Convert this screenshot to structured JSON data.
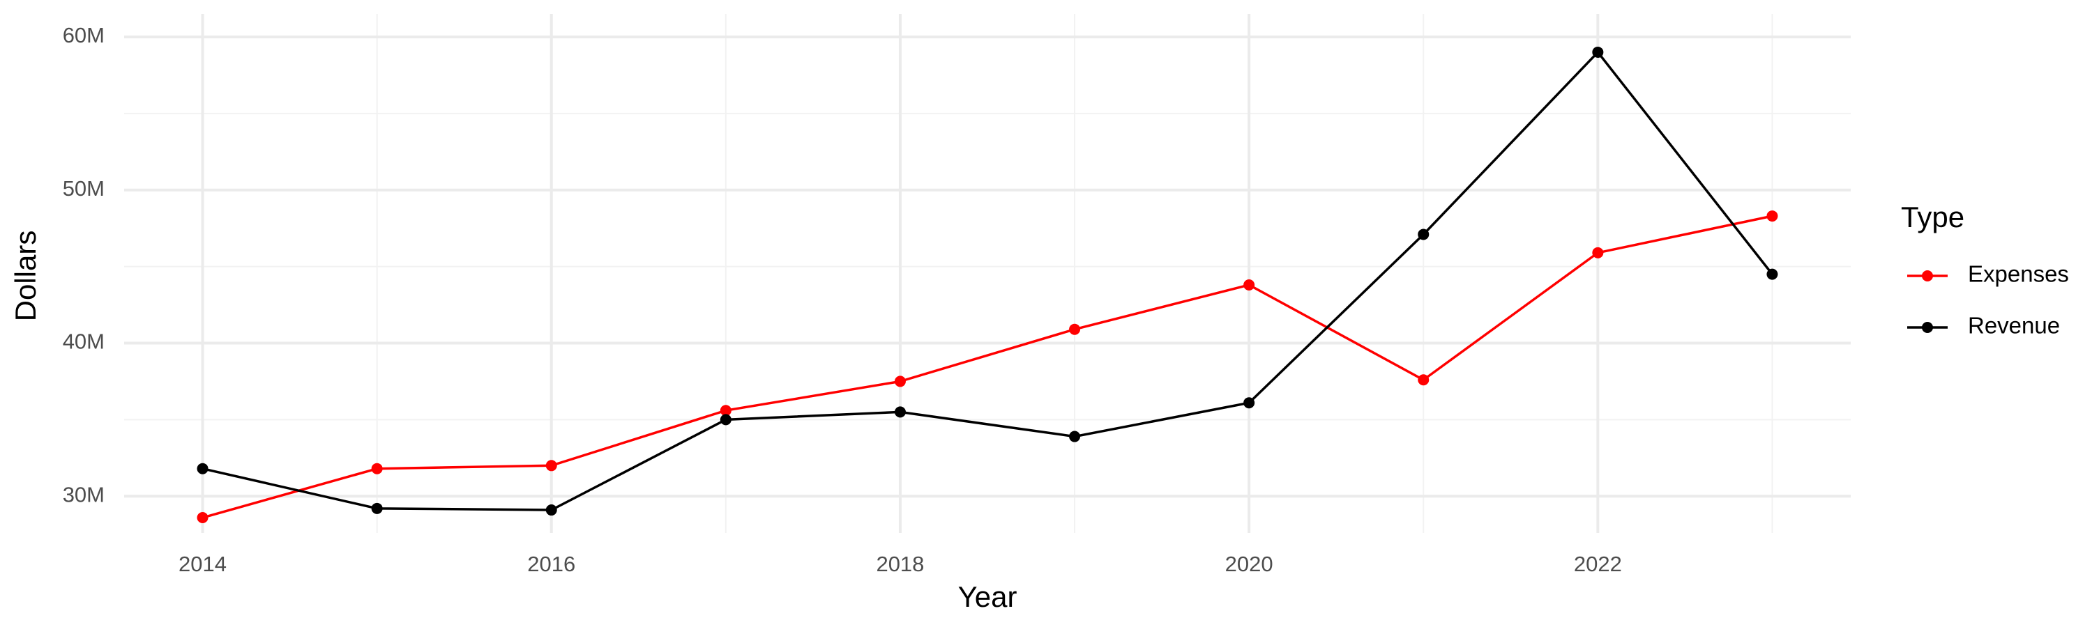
{
  "chart_data": {
    "type": "line",
    "x_label": "Year",
    "y_label": "Dollars",
    "legend_title": "Type",
    "x": [
      2014,
      2015,
      2016,
      2017,
      2018,
      2019,
      2020,
      2021,
      2022,
      2023
    ],
    "series": [
      {
        "name": "Expenses",
        "color": "#ff0000",
        "values": [
          28600000,
          31800000,
          32000000,
          35600000,
          37500000,
          40900000,
          43800000,
          37600000,
          45900000,
          48300000
        ]
      },
      {
        "name": "Revenue",
        "color": "#000000",
        "values": [
          31800000,
          29200000,
          29100000,
          35000000,
          35500000,
          33900000,
          36100000,
          47100000,
          59000000,
          44500000
        ]
      }
    ],
    "xlim": [
      2013.55,
      2023.45
    ],
    "ylim": [
      27600000,
      61500000
    ],
    "xticks": [
      2014,
      2016,
      2018,
      2020,
      2022
    ],
    "yticks": [
      {
        "value": 30000000,
        "label": "30M"
      },
      {
        "value": 40000000,
        "label": "40M"
      },
      {
        "value": 50000000,
        "label": "50M"
      },
      {
        "value": 60000000,
        "label": "60M"
      }
    ],
    "minor_xticks": [
      2015,
      2017,
      2019,
      2021,
      2023
    ],
    "minor_yticks": [
      35000000,
      45000000,
      55000000
    ],
    "grid": true,
    "legend": "right"
  }
}
